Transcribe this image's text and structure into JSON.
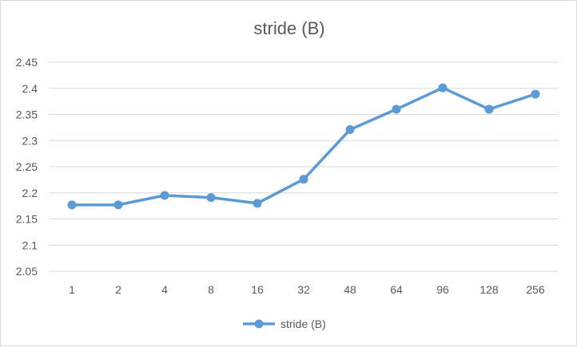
{
  "chart_data": {
    "type": "line",
    "title": "stride (B)",
    "categories": [
      "1",
      "2",
      "4",
      "8",
      "16",
      "32",
      "48",
      "64",
      "96",
      "128",
      "256"
    ],
    "series": [
      {
        "name": "stride (B)",
        "values": [
          2.177,
          2.177,
          2.195,
          2.191,
          2.18,
          2.226,
          2.321,
          2.36,
          2.401,
          2.36,
          2.389
        ],
        "color": "#5b9bd5"
      }
    ],
    "yticks": [
      "2.05",
      "2.1",
      "2.15",
      "2.2",
      "2.25",
      "2.3",
      "2.35",
      "2.4",
      "2.45"
    ],
    "ylim": [
      2.05,
      2.45
    ],
    "grid": true,
    "legend": "bottom",
    "xlabel": "",
    "ylabel": ""
  }
}
